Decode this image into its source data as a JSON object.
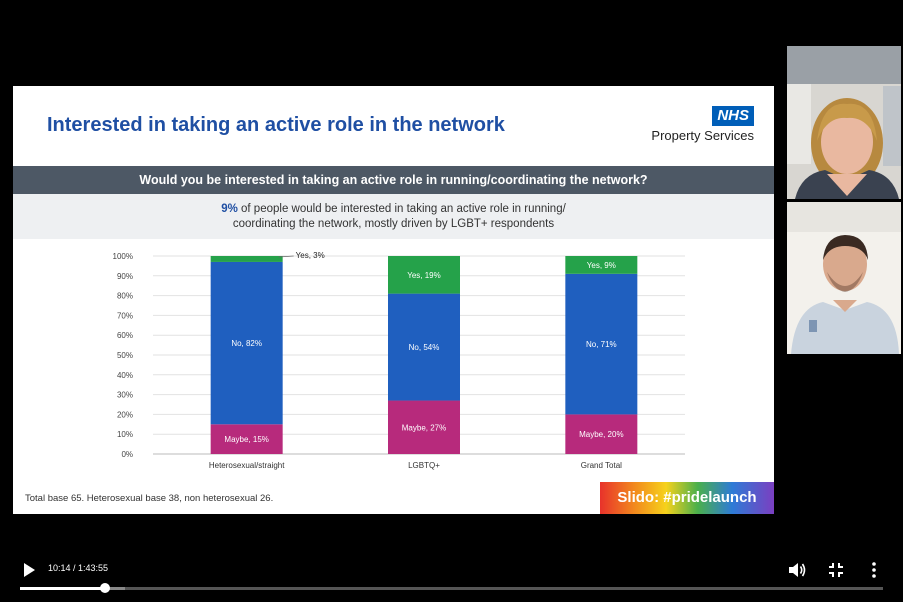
{
  "slide": {
    "title": "Interested in taking an active role in the network",
    "logo_box": "NHS",
    "logo_sub": "Property Services",
    "question": "Would you be interested in taking an active role in running/coordinating the network?",
    "highlight": "9%",
    "summary_line1": " of people would be interested in taking an active role in running/",
    "summary_line2": "coordinating the network, mostly driven by LGBT+ respondents",
    "footer": "Total base 65. Heterosexual base 38, non heterosexual 26.",
    "slido": "Slido: #pridelaunch"
  },
  "chart_data": {
    "type": "bar",
    "stacked": true,
    "categories": [
      "Heterosexual/straight",
      "LGBTQ+",
      "Grand Total"
    ],
    "series": [
      {
        "name": "Maybe",
        "values": [
          15,
          27,
          20
        ],
        "color": "#b72a7c"
      },
      {
        "name": "No",
        "values": [
          82,
          54,
          71
        ],
        "color": "#1f5fbf"
      },
      {
        "name": "Yes",
        "values": [
          3,
          19,
          9
        ],
        "color": "#25a24a"
      }
    ],
    "bar_labels": [
      [
        "Maybe, 15%",
        "No, 82%",
        "Yes, 3%"
      ],
      [
        "Maybe, 27%",
        "No, 54%",
        "Yes, 19%"
      ],
      [
        "Maybe, 20%",
        "No, 71%",
        "Yes, 9%"
      ]
    ],
    "y_ticks": [
      "0%",
      "10%",
      "20%",
      "30%",
      "40%",
      "50%",
      "60%",
      "70%",
      "80%",
      "90%",
      "100%"
    ],
    "ylim": [
      0,
      100
    ],
    "grid": true
  },
  "player": {
    "time": "10:14 / 1:43:55",
    "progress": 0.098,
    "buffered": 0.122,
    "icons": [
      "play-icon",
      "volume-icon",
      "fullscreen-exit-icon",
      "more-options-icon"
    ]
  }
}
